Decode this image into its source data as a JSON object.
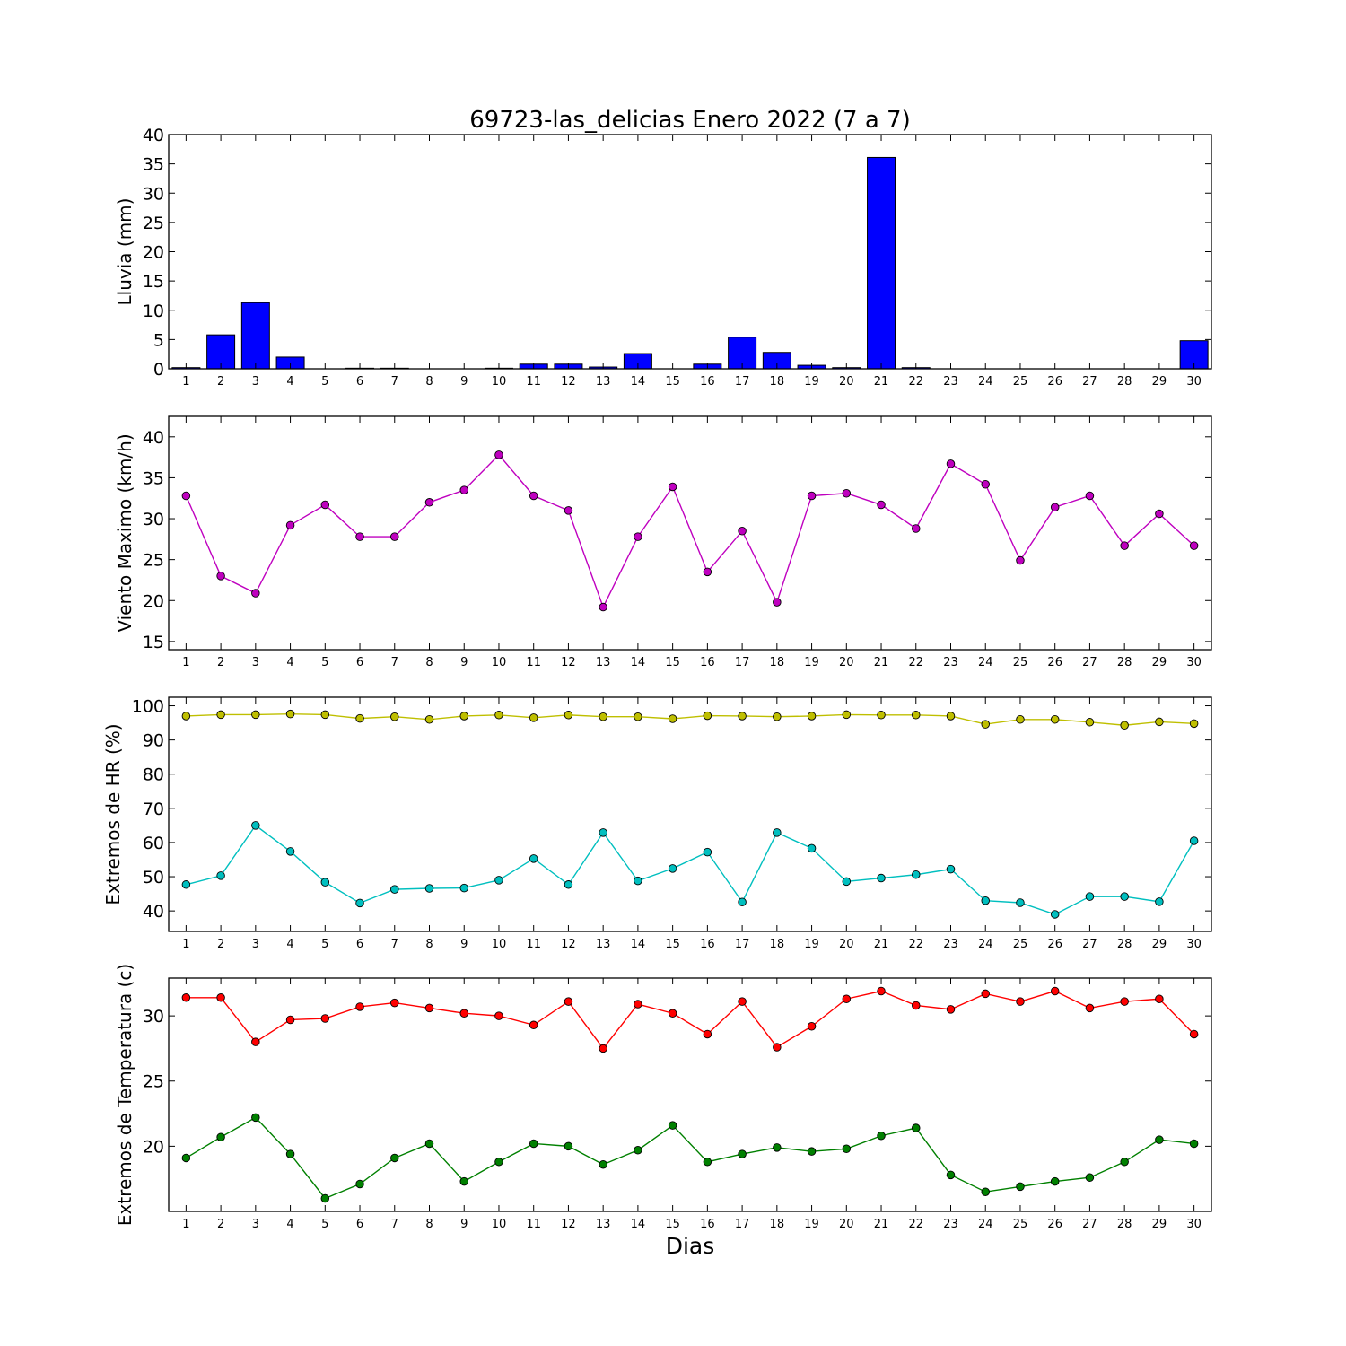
{
  "chart_data": [
    {
      "type": "bar",
      "title": "69723-las_delicias Enero 2022  (7 a 7)",
      "ylabel": "Lluvia (mm)",
      "xlabel": "",
      "x": [
        1,
        2,
        3,
        4,
        5,
        6,
        7,
        8,
        9,
        10,
        11,
        12,
        13,
        14,
        15,
        16,
        17,
        18,
        19,
        20,
        21,
        22,
        23,
        24,
        25,
        26,
        27,
        28,
        29,
        30
      ],
      "xlim": [
        0.5,
        30.5
      ],
      "ylim": [
        0,
        40
      ],
      "yticks": [
        0,
        5,
        10,
        15,
        20,
        25,
        30,
        35,
        40
      ],
      "grid": false,
      "series": [
        {
          "color": "#0000ff",
          "values": [
            0.2,
            5.8,
            11.3,
            2.0,
            0,
            0.1,
            0.1,
            0,
            0,
            0.1,
            0.8,
            0.8,
            0.3,
            2.6,
            0,
            0.8,
            5.4,
            2.8,
            0.6,
            0.2,
            36.1,
            0.2,
            0,
            0,
            0,
            0,
            0,
            0,
            0,
            4.8
          ]
        }
      ]
    },
    {
      "type": "line",
      "ylabel": "Viento Maximo (km/h)",
      "xlabel": "",
      "x": [
        1,
        2,
        3,
        4,
        5,
        6,
        7,
        8,
        9,
        10,
        11,
        12,
        13,
        14,
        15,
        16,
        17,
        18,
        19,
        20,
        21,
        22,
        23,
        24,
        25,
        26,
        27,
        28,
        29,
        30
      ],
      "xlim": [
        0.5,
        30.5
      ],
      "ylim": [
        14,
        42.5
      ],
      "yticks": [
        15,
        20,
        25,
        30,
        35,
        40
      ],
      "grid": false,
      "series": [
        {
          "color": "#bf00bf",
          "values": [
            32.8,
            23.0,
            20.9,
            29.2,
            31.7,
            27.8,
            27.8,
            32.0,
            33.5,
            37.8,
            32.8,
            31.0,
            19.2,
            27.8,
            33.9,
            23.5,
            28.5,
            19.8,
            32.8,
            33.1,
            31.7,
            28.8,
            36.7,
            34.2,
            24.9,
            31.4,
            32.8,
            26.7,
            30.6,
            26.7
          ]
        }
      ]
    },
    {
      "type": "line",
      "ylabel": "Extremos de HR (%)",
      "xlabel": "",
      "x": [
        1,
        2,
        3,
        4,
        5,
        6,
        7,
        8,
        9,
        10,
        11,
        12,
        13,
        14,
        15,
        16,
        17,
        18,
        19,
        20,
        21,
        22,
        23,
        24,
        25,
        26,
        27,
        28,
        29,
        30
      ],
      "xlim": [
        0.5,
        30.5
      ],
      "ylim": [
        34,
        102.5
      ],
      "yticks": [
        40,
        50,
        60,
        70,
        80,
        90,
        100
      ],
      "grid": false,
      "series": [
        {
          "color": "#bfbf00",
          "values": [
            97.0,
            97.4,
            97.4,
            97.6,
            97.4,
            96.3,
            96.8,
            96.0,
            97.0,
            97.3,
            96.5,
            97.3,
            96.8,
            96.8,
            96.2,
            97.1,
            97.0,
            96.8,
            97.0,
            97.4,
            97.3,
            97.3,
            97.0,
            94.6,
            96.0,
            96.0,
            95.2,
            94.3,
            95.3,
            94.8
          ]
        },
        {
          "color": "#00bfbf",
          "values": [
            47.7,
            50.3,
            65.0,
            57.4,
            48.4,
            42.3,
            46.3,
            46.6,
            46.7,
            49.0,
            55.3,
            47.7,
            62.9,
            48.8,
            52.4,
            57.2,
            42.6,
            62.9,
            58.3,
            48.6,
            49.6,
            50.6,
            52.2,
            43.0,
            42.4,
            39.0,
            44.2,
            44.2,
            42.7,
            60.5
          ]
        }
      ]
    },
    {
      "type": "line",
      "ylabel": "Extremos de Temperatura (c)",
      "xlabel": "Dias",
      "x": [
        1,
        2,
        3,
        4,
        5,
        6,
        7,
        8,
        9,
        10,
        11,
        12,
        13,
        14,
        15,
        16,
        17,
        18,
        19,
        20,
        21,
        22,
        23,
        24,
        25,
        26,
        27,
        28,
        29,
        30
      ],
      "xlim": [
        0.5,
        30.5
      ],
      "ylim": [
        15,
        32.9
      ],
      "yticks": [
        20,
        25,
        30
      ],
      "grid": false,
      "series": [
        {
          "color": "#ff0000",
          "values": [
            31.4,
            31.4,
            28.0,
            29.7,
            29.8,
            30.7,
            31.0,
            30.6,
            30.2,
            30.0,
            29.3,
            31.1,
            27.5,
            30.9,
            30.2,
            28.6,
            31.1,
            27.6,
            29.2,
            31.3,
            31.9,
            30.8,
            30.5,
            31.7,
            31.1,
            31.9,
            30.6,
            31.1,
            31.3,
            28.6
          ]
        },
        {
          "color": "#008000",
          "values": [
            19.1,
            20.7,
            22.2,
            19.4,
            16.0,
            17.1,
            19.1,
            20.2,
            17.3,
            18.8,
            20.2,
            20.0,
            18.6,
            19.7,
            21.6,
            18.8,
            19.4,
            19.9,
            19.6,
            19.8,
            20.8,
            21.4,
            17.8,
            16.5,
            16.9,
            17.3,
            17.6,
            18.8,
            20.5,
            20.2
          ]
        }
      ]
    }
  ]
}
